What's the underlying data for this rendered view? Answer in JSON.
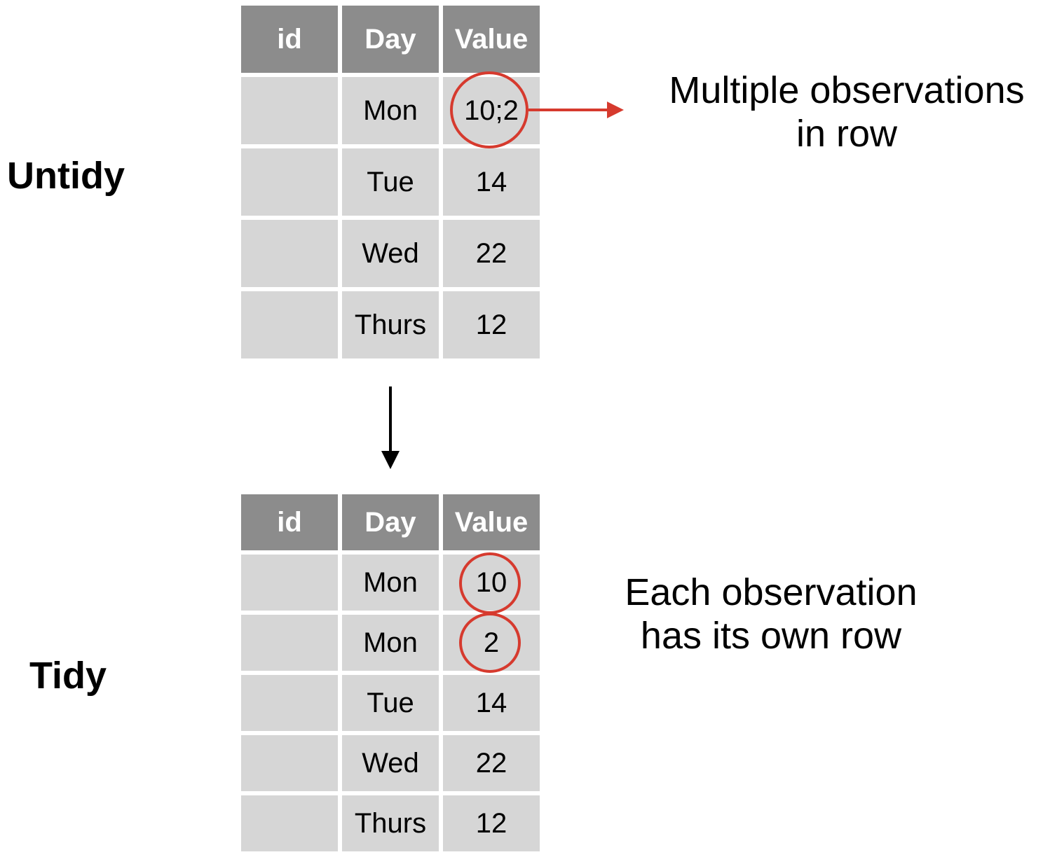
{
  "labels": {
    "untidy": "Untidy",
    "tidy": "Tidy"
  },
  "untidy_table": {
    "headers": [
      "id",
      "Day",
      "Value"
    ],
    "rows": [
      [
        "",
        "Mon",
        "10;2"
      ],
      [
        "",
        "Tue",
        "14"
      ],
      [
        "",
        "Wed",
        "22"
      ],
      [
        "",
        "Thurs",
        "12"
      ]
    ]
  },
  "tidy_table": {
    "headers": [
      "id",
      "Day",
      "Value"
    ],
    "rows": [
      [
        "",
        "Mon",
        "10"
      ],
      [
        "",
        "Mon",
        "2"
      ],
      [
        "",
        "Tue",
        "14"
      ],
      [
        "",
        "Wed",
        "22"
      ],
      [
        "",
        "Thurs",
        "12"
      ]
    ]
  },
  "annotations": {
    "untidy_line1": "Multiple observations",
    "untidy_line2": "in row",
    "tidy_line1": "Each observation",
    "tidy_line2": "has its own row"
  },
  "colors": {
    "header_bg": "#8c8c8c",
    "cell_bg": "#d6d6d6",
    "highlight": "#d63a2e"
  }
}
